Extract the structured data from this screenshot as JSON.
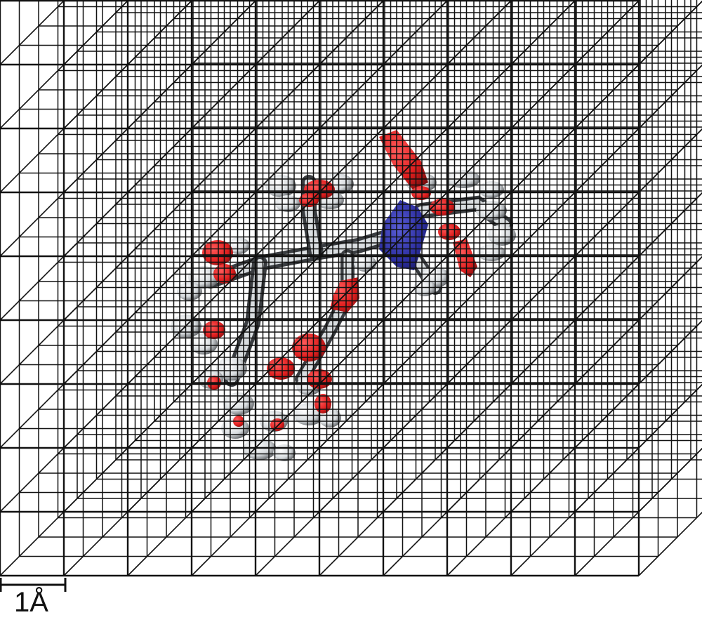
{
  "scale_bar": {
    "label": "1Å"
  },
  "colors": {
    "grid_line": "#111111",
    "oxygen": "#e01e1e",
    "nitrogen": "#2b2d9e",
    "carbon_light": "#f2f4f5",
    "carbon_dark": "#3a3d41"
  }
}
